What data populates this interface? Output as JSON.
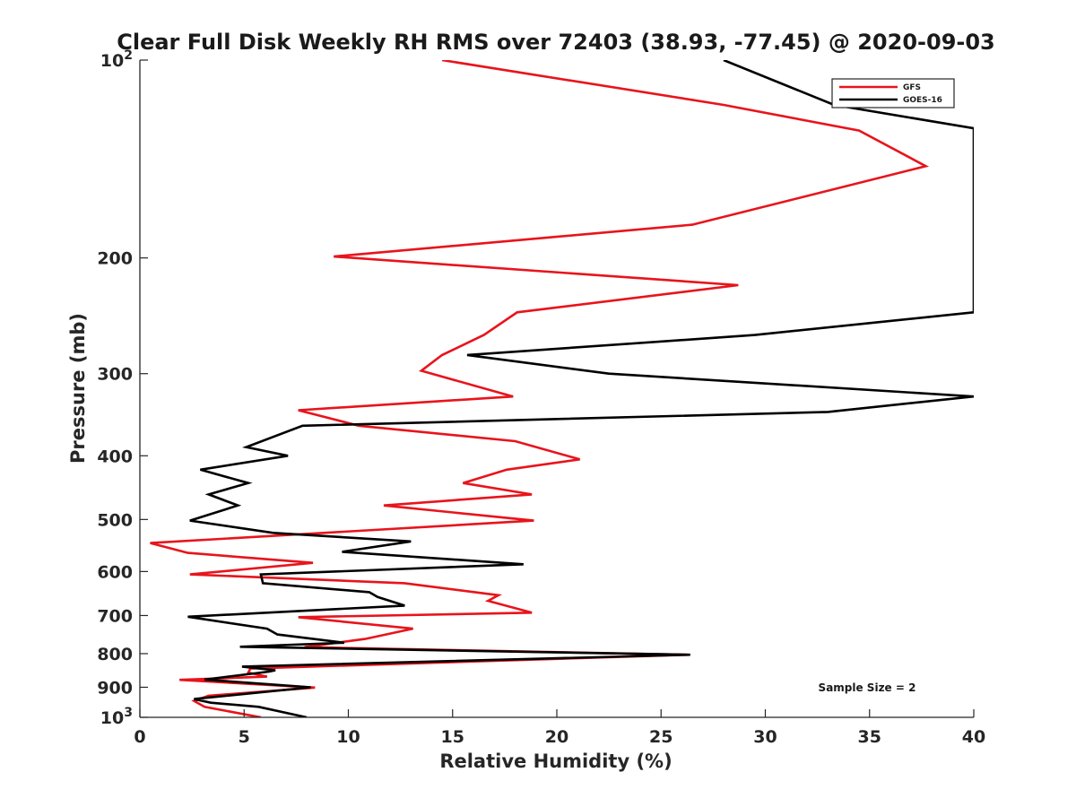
{
  "chart_data": {
    "type": "line",
    "title": "Clear Full Disk Weekly RH RMS over 72403 (38.93, -77.45) @ 2020-09-03",
    "xlabel": "Relative Humidity (%)",
    "ylabel": "Pressure (mb)",
    "xlim": [
      0,
      40
    ],
    "ylim": [
      100,
      1000
    ],
    "y_scale": "log",
    "y_reversed": true,
    "x_ticks": [
      "0",
      "5",
      "10",
      "15",
      "20",
      "25",
      "30",
      "35",
      "40"
    ],
    "y_ticks": [
      {
        "value": 100,
        "label": "10",
        "exp": "2"
      },
      {
        "value": 200,
        "label": "200"
      },
      {
        "value": 300,
        "label": "300"
      },
      {
        "value": 400,
        "label": "400"
      },
      {
        "value": 500,
        "label": "500"
      },
      {
        "value": 600,
        "label": "600"
      },
      {
        "value": 700,
        "label": "700"
      },
      {
        "value": 800,
        "label": "800"
      },
      {
        "value": 900,
        "label": "900"
      },
      {
        "value": 1000,
        "label": "10",
        "exp": "3"
      }
    ],
    "legend_position": "top-right",
    "grid": false,
    "annotation": "Sample Size = 2",
    "series": [
      {
        "name": "GFS",
        "color": "#e8141c",
        "points": [
          [
            14.5,
            100
          ],
          [
            28,
            117
          ],
          [
            34.5,
            128
          ],
          [
            37.7,
            145
          ],
          [
            26.5,
            178
          ],
          [
            9.3,
            199
          ],
          [
            28.7,
            220
          ],
          [
            18.1,
            242
          ],
          [
            16.5,
            262
          ],
          [
            14.5,
            281
          ],
          [
            13.5,
            297
          ],
          [
            17.9,
            325
          ],
          [
            7.6,
            341
          ],
          [
            10.5,
            360
          ],
          [
            18,
            380
          ],
          [
            21.1,
            405
          ],
          [
            17.6,
            420
          ],
          [
            15.5,
            440
          ],
          [
            18.8,
            458
          ],
          [
            11.7,
            476
          ],
          [
            18.9,
            502
          ],
          [
            0.5,
            543
          ],
          [
            2.3,
            562
          ],
          [
            8.3,
            582
          ],
          [
            2.4,
            606
          ],
          [
            12.7,
            625
          ],
          [
            17.2,
            652
          ],
          [
            16.7,
            665
          ],
          [
            18.8,
            693
          ],
          [
            7.6,
            704
          ],
          [
            13.1,
            733
          ],
          [
            10.8,
            760
          ],
          [
            7.9,
            782
          ],
          [
            26.3,
            803
          ],
          [
            5.3,
            843
          ],
          [
            5.2,
            855
          ],
          [
            6.1,
            867
          ],
          [
            1.9,
            877
          ],
          [
            8.4,
            901
          ],
          [
            3.3,
            927
          ],
          [
            2.6,
            944
          ],
          [
            3.1,
            964
          ],
          [
            5.8,
            1000
          ]
        ]
      },
      {
        "name": "GOES-16",
        "color": "#000000",
        "points": [
          [
            28,
            100
          ],
          [
            33.3,
            117
          ],
          [
            40,
            127
          ],
          [
            40,
            242
          ],
          [
            29.5,
            262
          ],
          [
            15.7,
            281
          ],
          [
            22.5,
            300
          ],
          [
            40,
            325
          ],
          [
            33,
            343
          ],
          [
            7.8,
            360
          ],
          [
            5.1,
            388
          ],
          [
            7.1,
            400
          ],
          [
            2.9,
            420
          ],
          [
            5.2,
            440
          ],
          [
            3.3,
            458
          ],
          [
            4.7,
            476
          ],
          [
            2.4,
            502
          ],
          [
            6.4,
            524
          ],
          [
            13,
            540
          ],
          [
            9.7,
            560
          ],
          [
            18.4,
            585
          ],
          [
            5.8,
            606
          ],
          [
            5.9,
            625
          ],
          [
            11,
            645
          ],
          [
            11.4,
            656
          ],
          [
            12.7,
            676
          ],
          [
            2.3,
            703
          ],
          [
            6.1,
            733
          ],
          [
            6.6,
            748
          ],
          [
            9.8,
            770
          ],
          [
            4.8,
            781
          ],
          [
            26.4,
            803
          ],
          [
            4.9,
            837
          ],
          [
            6.5,
            848
          ],
          [
            6.2,
            852
          ],
          [
            3.1,
            876
          ],
          [
            8.2,
            900
          ],
          [
            2.6,
            938
          ],
          [
            3.4,
            950
          ],
          [
            5.7,
            964
          ],
          [
            8,
            1000
          ]
        ]
      }
    ]
  }
}
